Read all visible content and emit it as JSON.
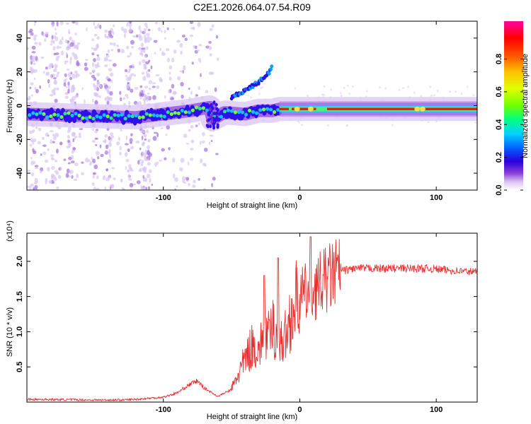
{
  "title": "C2E1.2026.064.07.54.R09",
  "chart_data": [
    {
      "type": "heatmap",
      "xlabel": "Height of straight line (km)",
      "ylabel": "Frequency (Hz)",
      "xlim": [
        -200,
        130
      ],
      "ylim": [
        -50,
        50
      ],
      "xticks": [
        -100,
        0,
        100
      ],
      "yticks": [
        -40,
        -20,
        0,
        20,
        40
      ],
      "colorbar": {
        "label": "Normalized spectral amplitude",
        "range": [
          0,
          1
        ],
        "ticks": [
          "0.0",
          "0.2",
          "0.4",
          "0.6",
          "0.8"
        ],
        "colormap": [
          "#ffffff",
          "#d9c2f0",
          "#8a3fd8",
          "#2a00e0",
          "#0060ff",
          "#00d0ff",
          "#00ff80",
          "#70ff00",
          "#e0ff00",
          "#ffc000",
          "#ff5000",
          "#ff0000",
          "#ff00a0"
        ]
      },
      "ridge": {
        "description": "frequency of peak spectral amplitude vs height",
        "x": [
          -200,
          -160,
          -120,
          -100,
          -80,
          -66,
          -64,
          -55,
          -40,
          -30,
          -20,
          -15,
          -10,
          0,
          20,
          60,
          100,
          130
        ],
        "y": [
          -5,
          -6,
          -7,
          -5,
          -3,
          -1,
          -8,
          -4,
          -5,
          -3,
          -3,
          -2,
          -2,
          -2,
          -2,
          -2,
          -2,
          -2
        ]
      },
      "spur_line": {
        "x": [
          -50,
          -40,
          -30,
          -22,
          -20
        ],
        "y": [
          5,
          9,
          14,
          20,
          25
        ]
      }
    },
    {
      "type": "line",
      "xlabel": "Height of straight line (km)",
      "ylabel": "SNR (10 * v/v)",
      "yscale_label": "(x10⁴)",
      "xlim": [
        -200,
        130
      ],
      "ylim": [
        0,
        2.4
      ],
      "xticks": [
        -100,
        0,
        100
      ],
      "yticks": [
        "0.5",
        "1.0",
        "1.5",
        "2.0"
      ],
      "series": [
        {
          "name": "SNR",
          "color": "#e83030",
          "x": [
            -200,
            -150,
            -130,
            -120,
            -100,
            -90,
            -80,
            -75,
            -70,
            -60,
            -50,
            -45,
            -40,
            -35,
            -30,
            -25,
            -22,
            -20,
            -17,
            -15,
            -10,
            -7,
            -5,
            -2,
            0,
            10,
            20,
            25,
            30,
            35,
            40,
            50,
            60,
            80,
            90,
            100,
            110,
            120,
            130
          ],
          "y": [
            0.04,
            0.03,
            0.03,
            0.04,
            0.07,
            0.13,
            0.26,
            0.3,
            0.2,
            0.08,
            0.18,
            0.4,
            0.6,
            0.8,
            0.75,
            0.95,
            0.9,
            1.1,
            0.9,
            0.8,
            0.95,
            1.2,
            1.3,
            1.45,
            1.5,
            1.6,
            1.75,
            1.82,
            1.86,
            1.88,
            1.9,
            1.9,
            1.9,
            1.9,
            1.9,
            1.89,
            1.87,
            1.86,
            1.85
          ]
        }
      ],
      "spikes": [
        {
          "x": -26,
          "y": 1.8
        },
        {
          "x": -16,
          "y": 2.05
        },
        {
          "x": 8,
          "y": 2.35
        }
      ]
    }
  ]
}
